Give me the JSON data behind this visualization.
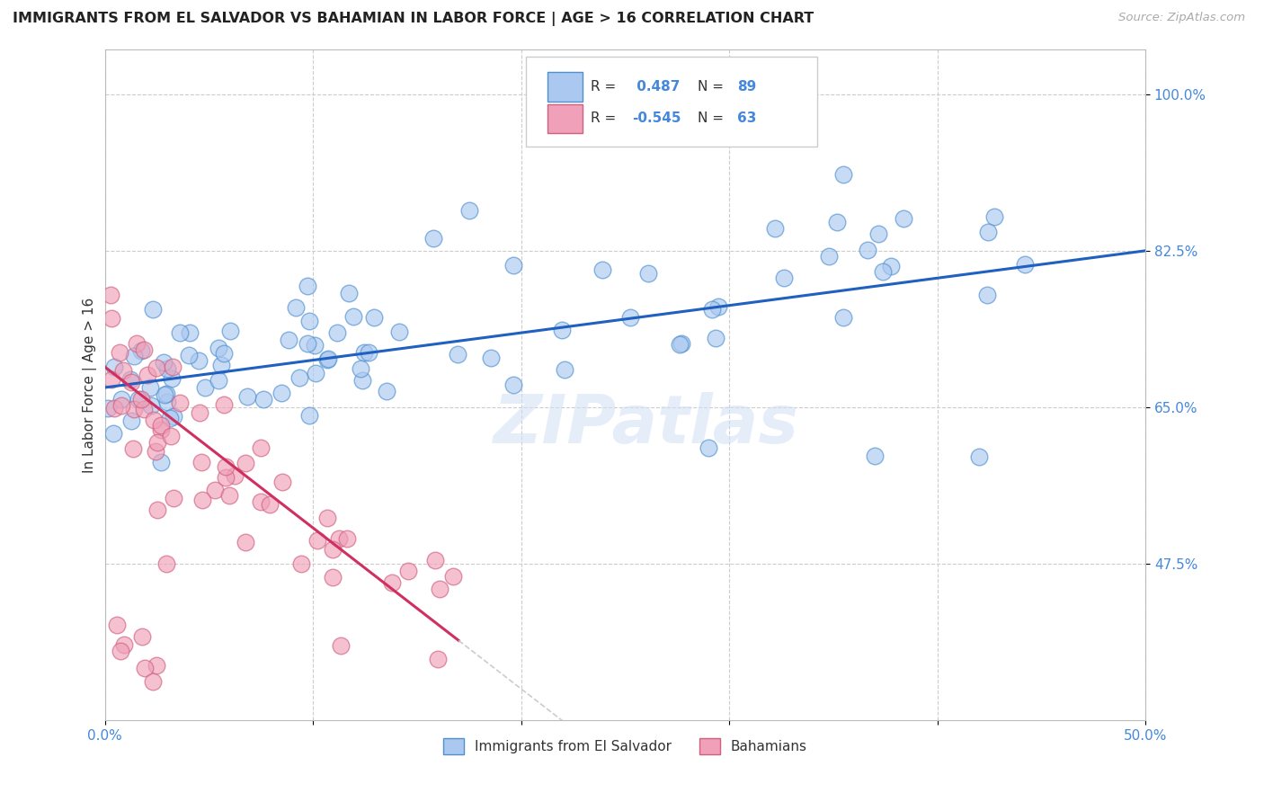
{
  "title": "IMMIGRANTS FROM EL SALVADOR VS BAHAMIAN IN LABOR FORCE | AGE > 16 CORRELATION CHART",
  "source": "Source: ZipAtlas.com",
  "ylabel": "In Labor Force | Age > 16",
  "xlim": [
    0.0,
    0.5
  ],
  "ylim": [
    0.3,
    1.05
  ],
  "xticks": [
    0.0,
    0.1,
    0.2,
    0.3,
    0.4,
    0.5
  ],
  "xticklabels": [
    "0.0%",
    "",
    "",
    "",
    "",
    "50.0%"
  ],
  "ytick_positions": [
    0.475,
    0.65,
    0.825,
    1.0
  ],
  "ytick_labels": [
    "47.5%",
    "65.0%",
    "82.5%",
    "100.0%"
  ],
  "r_blue": 0.487,
  "n_blue": 89,
  "r_pink": -0.545,
  "n_pink": 63,
  "color_blue_face": "#aac8f0",
  "color_blue_edge": "#5090d0",
  "color_pink_face": "#f0a0b8",
  "color_pink_edge": "#d06080",
  "color_blue_line": "#2060c0",
  "color_pink_line": "#d03060",
  "color_gray_dashed": "#cccccc",
  "watermark": "ZIPatlas",
  "background_color": "#ffffff",
  "grid_color": "#cccccc",
  "title_color": "#222222",
  "tick_label_color": "#4488dd",
  "legend_label1": "Immigrants from El Salvador",
  "legend_label2": "Bahamians"
}
